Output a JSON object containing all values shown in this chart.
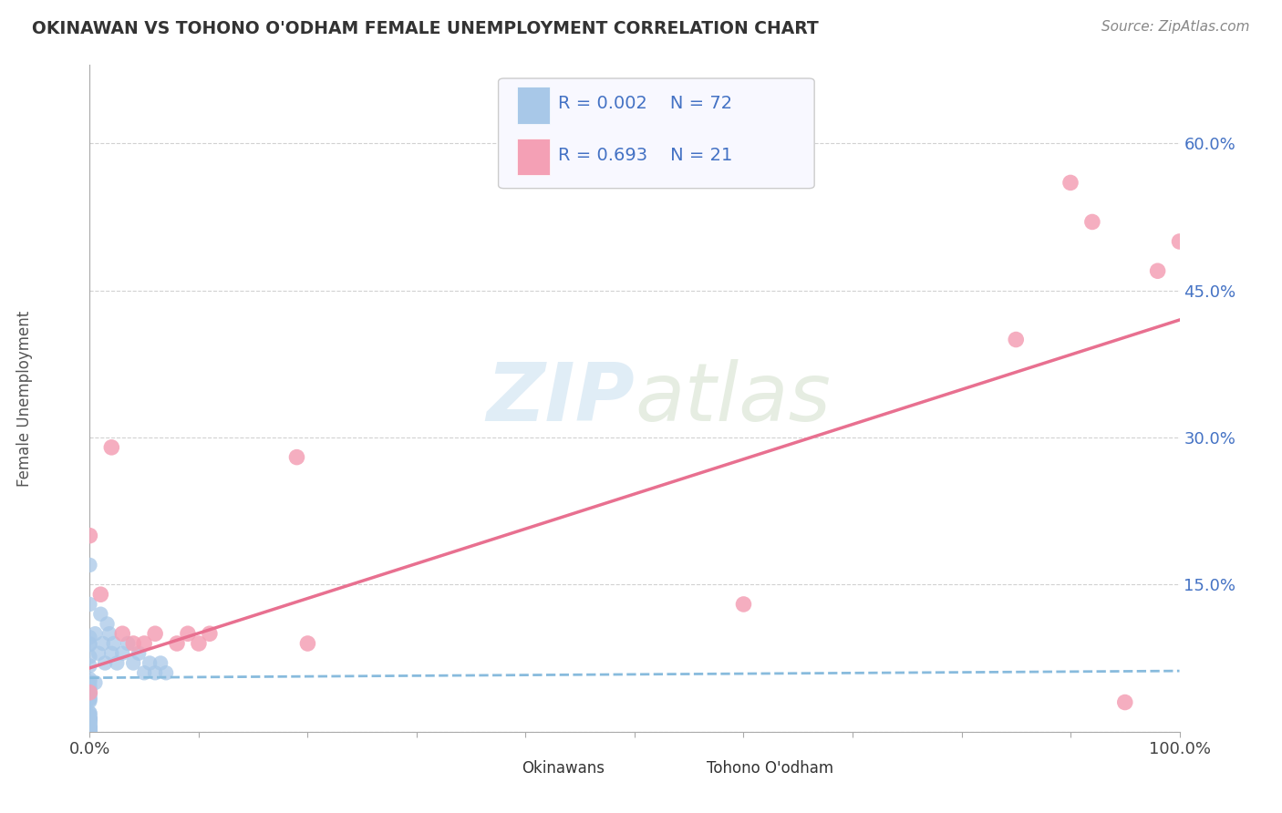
{
  "title": "OKINAWAN VS TOHONO O'ODHAM FEMALE UNEMPLOYMENT CORRELATION CHART",
  "source": "Source: ZipAtlas.com",
  "ylabel": "Female Unemployment",
  "xlim": [
    0.0,
    1.0
  ],
  "ylim": [
    0.0,
    0.68
  ],
  "ytick_positions": [
    0.0,
    0.15,
    0.3,
    0.45,
    0.6
  ],
  "ytick_labels": [
    "",
    "15.0%",
    "30.0%",
    "45.0%",
    "60.0%"
  ],
  "background_color": "#ffffff",
  "grid_color": "#cccccc",
  "okinawan_color": "#a8c8e8",
  "tohono_color": "#f4a0b5",
  "line_blue_color": "#88bbdd",
  "line_pink_color": "#e87090",
  "legend_r1": "R = 0.002",
  "legend_n1": "N = 72",
  "legend_r2": "R = 0.693",
  "legend_n2": "N = 21",
  "okinawan_label": "Okinawans",
  "tohono_label": "Tohono O'odham",
  "tohono_x": [
    0.0,
    0.0,
    0.01,
    0.02,
    0.03,
    0.04,
    0.05,
    0.06,
    0.08,
    0.09,
    0.1,
    0.11,
    0.19,
    0.2,
    0.6,
    0.85,
    0.9,
    0.92,
    0.95,
    0.98,
    1.0
  ],
  "tohono_y": [
    0.2,
    0.04,
    0.14,
    0.29,
    0.1,
    0.09,
    0.09,
    0.1,
    0.09,
    0.1,
    0.09,
    0.1,
    0.28,
    0.09,
    0.13,
    0.4,
    0.56,
    0.52,
    0.03,
    0.47,
    0.5
  ],
  "blue_line_x": [
    0.0,
    1.0
  ],
  "blue_line_y": [
    0.055,
    0.062
  ],
  "pink_line_x": [
    0.0,
    1.0
  ],
  "pink_line_y": [
    0.065,
    0.42
  ]
}
